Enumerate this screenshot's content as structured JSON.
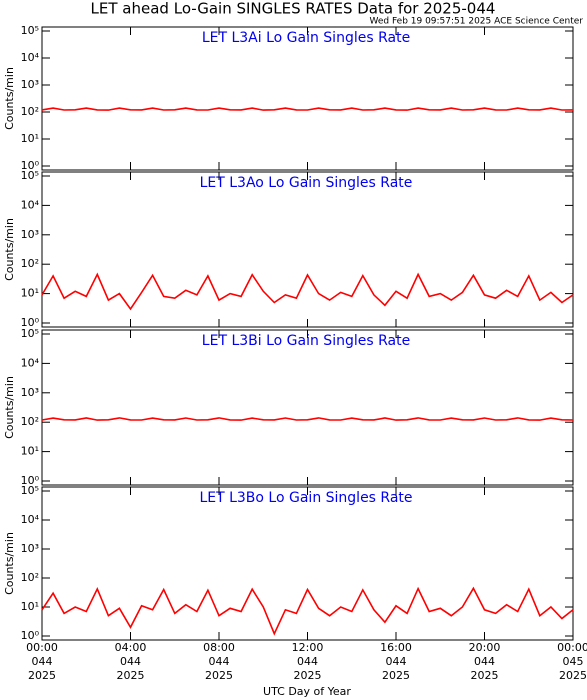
{
  "title": "LET ahead Lo-Gain SINGLES RATES Data for 2025-044",
  "subtitle": "Wed Feb 19 09:57:51 2025 ACE Science Center",
  "x_axis": {
    "label": "UTC Day of Year",
    "xlim": [
      0,
      24
    ],
    "xticks": [
      {
        "value": 0,
        "label": "00:00"
      },
      {
        "value": 4,
        "label": "04:00"
      },
      {
        "value": 8,
        "label": "08:00"
      },
      {
        "value": 12,
        "label": "12:00"
      },
      {
        "value": 16,
        "label": "16:00"
      },
      {
        "value": 20,
        "label": "20:00"
      },
      {
        "value": 24,
        "label": "00:00"
      }
    ],
    "day_labels": [
      "044",
      "044",
      "044",
      "044",
      "044",
      "044",
      "045"
    ],
    "year_labels": [
      "2025",
      "2025",
      "2025",
      "2025",
      "2025",
      "2025",
      "2025"
    ]
  },
  "chart_data": [
    {
      "type": "line",
      "title": "LET L3Ai Lo Gain Singles Rate",
      "ylabel": "Counts/min",
      "log_y": true,
      "ylim": [
        1,
        100000
      ],
      "yticks": [
        {
          "value": 1,
          "label": "10⁰"
        },
        {
          "value": 10,
          "label": "10¹"
        },
        {
          "value": 100,
          "label": "10²"
        },
        {
          "value": 1000,
          "label": "10³"
        },
        {
          "value": 10000,
          "label": "10⁴"
        },
        {
          "value": 100000,
          "label": "10⁵"
        }
      ],
      "x": [
        0,
        0.5,
        1,
        1.5,
        2,
        2.5,
        3,
        3.5,
        4,
        4.5,
        5,
        5.5,
        6,
        6.5,
        7,
        7.5,
        8,
        8.5,
        9,
        9.5,
        10,
        10.5,
        11,
        11.5,
        12,
        12.5,
        13,
        13.5,
        14,
        14.5,
        15,
        15.5,
        16,
        16.5,
        17,
        17.5,
        18,
        18.5,
        19,
        19.5,
        20,
        20.5,
        21,
        21.5,
        22,
        22.5,
        23,
        23.5,
        24
      ],
      "series": [
        {
          "color": "#ff0000",
          "values": [
            120,
            140,
            119,
            121,
            140,
            120,
            118,
            140,
            121,
            120,
            140,
            119,
            121,
            140,
            120,
            119,
            140,
            121,
            120,
            140,
            118,
            121,
            140,
            120,
            119,
            140,
            121,
            120,
            140,
            119,
            121,
            140,
            120,
            118,
            140,
            121,
            120,
            140,
            119,
            121,
            140,
            120,
            119,
            140,
            121,
            120,
            140,
            119,
            120
          ]
        }
      ]
    },
    {
      "type": "line",
      "title": "LET L3Ao Lo Gain Singles Rate",
      "ylabel": "Counts/min",
      "log_y": true,
      "ylim": [
        1,
        100000
      ],
      "yticks": [
        {
          "value": 1,
          "label": "10⁰"
        },
        {
          "value": 10,
          "label": "10¹"
        },
        {
          "value": 100,
          "label": "10²"
        },
        {
          "value": 1000,
          "label": "10³"
        },
        {
          "value": 10000,
          "label": "10⁴"
        },
        {
          "value": 100000,
          "label": "10⁵"
        }
      ],
      "x": [
        0,
        0.5,
        1,
        1.5,
        2,
        2.5,
        3,
        3.5,
        4,
        4.5,
        5,
        5.5,
        6,
        6.5,
        7,
        7.5,
        8,
        8.5,
        9,
        9.5,
        10,
        10.5,
        11,
        11.5,
        12,
        12.5,
        13,
        13.5,
        14,
        14.5,
        15,
        15.5,
        16,
        16.5,
        17,
        17.5,
        18,
        18.5,
        19,
        19.5,
        20,
        20.5,
        21,
        21.5,
        22,
        22.5,
        23,
        23.5,
        24
      ],
      "series": [
        {
          "color": "#ff0000",
          "values": [
            9,
            40,
            7,
            12,
            8,
            45,
            6,
            10,
            3,
            11,
            42,
            8,
            7,
            13,
            9,
            40,
            6,
            10,
            8,
            44,
            12,
            5,
            9,
            7,
            43,
            10,
            6,
            11,
            8,
            41,
            9,
            4,
            12,
            7,
            45,
            8,
            10,
            6,
            11,
            42,
            9,
            7,
            13,
            8,
            40,
            6,
            11,
            5,
            9
          ]
        }
      ]
    },
    {
      "type": "line",
      "title": "LET L3Bi Lo Gain Singles Rate",
      "ylabel": "Counts/min",
      "log_y": true,
      "ylim": [
        1,
        100000
      ],
      "yticks": [
        {
          "value": 1,
          "label": "10⁰"
        },
        {
          "value": 10,
          "label": "10¹"
        },
        {
          "value": 100,
          "label": "10²"
        },
        {
          "value": 1000,
          "label": "10³"
        },
        {
          "value": 10000,
          "label": "10⁴"
        },
        {
          "value": 100000,
          "label": "10⁵"
        }
      ],
      "x": [
        0,
        0.5,
        1,
        1.5,
        2,
        2.5,
        3,
        3.5,
        4,
        4.5,
        5,
        5.5,
        6,
        6.5,
        7,
        7.5,
        8,
        8.5,
        9,
        9.5,
        10,
        10.5,
        11,
        11.5,
        12,
        12.5,
        13,
        13.5,
        14,
        14.5,
        15,
        15.5,
        16,
        16.5,
        17,
        17.5,
        18,
        18.5,
        19,
        19.5,
        20,
        20.5,
        21,
        21.5,
        22,
        22.5,
        23,
        23.5,
        24
      ],
      "series": [
        {
          "color": "#ff0000",
          "values": [
            119,
            138,
            121,
            120,
            139,
            118,
            121,
            140,
            120,
            119,
            138,
            121,
            120,
            139,
            119,
            121,
            140,
            120,
            118,
            138,
            121,
            120,
            139,
            119,
            121,
            140,
            120,
            119,
            138,
            121,
            120,
            139,
            118,
            121,
            140,
            120,
            119,
            138,
            121,
            120,
            139,
            119,
            121,
            140,
            120,
            118,
            138,
            121,
            119
          ]
        }
      ]
    },
    {
      "type": "line",
      "title": "LET L3Bo Lo Gain Singles Rate",
      "ylabel": "Counts/min",
      "log_y": true,
      "ylim": [
        1,
        100000
      ],
      "yticks": [
        {
          "value": 1,
          "label": "10⁰"
        },
        {
          "value": 10,
          "label": "10¹"
        },
        {
          "value": 100,
          "label": "10²"
        },
        {
          "value": 1000,
          "label": "10³"
        },
        {
          "value": 10000,
          "label": "10⁴"
        },
        {
          "value": 100000,
          "label": "10⁵"
        }
      ],
      "x": [
        0,
        0.5,
        1,
        1.5,
        2,
        2.5,
        3,
        3.5,
        4,
        4.5,
        5,
        5.5,
        6,
        6.5,
        7,
        7.5,
        8,
        8.5,
        9,
        9.5,
        10,
        10.5,
        11,
        11.5,
        12,
        12.5,
        13,
        13.5,
        14,
        14.5,
        15,
        15.5,
        16,
        16.5,
        17,
        17.5,
        18,
        18.5,
        19,
        19.5,
        20,
        20.5,
        21,
        21.5,
        22,
        22.5,
        23,
        23.5,
        24
      ],
      "series": [
        {
          "color": "#ff0000",
          "values": [
            8,
            30,
            6,
            10,
            7,
            42,
            5,
            9,
            2,
            11,
            8,
            40,
            6,
            12,
            7,
            38,
            5,
            9,
            7,
            41,
            10,
            1.2,
            8,
            6,
            40,
            9,
            5,
            10,
            7,
            39,
            8,
            3,
            11,
            6,
            43,
            7,
            9,
            5,
            10,
            44,
            8,
            6,
            12,
            7,
            41,
            5,
            10,
            4,
            8
          ]
        }
      ]
    }
  ]
}
